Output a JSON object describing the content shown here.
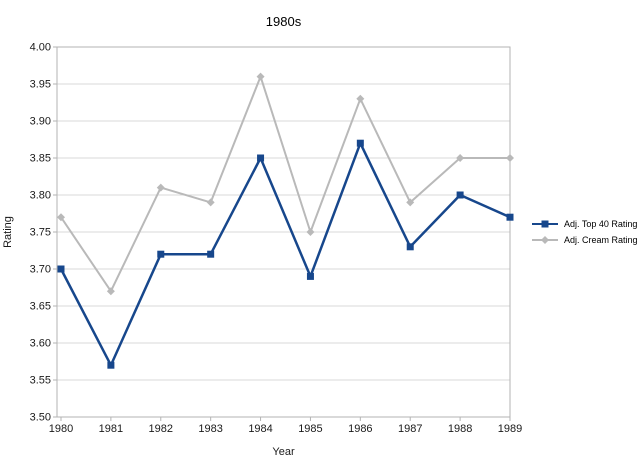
{
  "title": "1980s",
  "chart_data": {
    "type": "line",
    "title": "1980s",
    "xlabel": "Year",
    "ylabel": "Rating",
    "categories": [
      "1980",
      "1981",
      "1982",
      "1983",
      "1984",
      "1985",
      "1986",
      "1987",
      "1988",
      "1989"
    ],
    "ylim": [
      3.5,
      4.0
    ],
    "ytick_step": 0.05,
    "y_ticks": [
      "4.00",
      "3.95",
      "3.90",
      "3.85",
      "3.80",
      "3.75",
      "3.70",
      "3.65",
      "3.60",
      "3.55",
      "3.50"
    ],
    "grid": true,
    "legend_position": "right",
    "series": [
      {
        "name": "Adj. Top 40 Rating",
        "color": "#17478c",
        "marker": "square",
        "values": [
          3.7,
          3.57,
          3.72,
          3.72,
          3.85,
          3.69,
          3.87,
          3.73,
          3.8,
          3.77
        ]
      },
      {
        "name": "Adj. Cream Rating",
        "color": "#b9b9b9",
        "marker": "diamond",
        "values": [
          3.77,
          3.67,
          3.81,
          3.79,
          3.96,
          3.75,
          3.93,
          3.79,
          3.85,
          3.85
        ]
      }
    ]
  },
  "colors": {
    "background": "#ffffff",
    "grid": "#d9d9d9",
    "axis": "#b3b3b3",
    "text": "#1a1a1a"
  }
}
